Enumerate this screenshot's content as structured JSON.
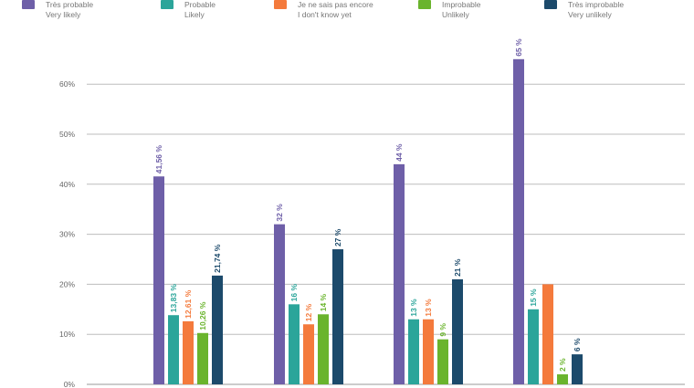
{
  "legend": [
    {
      "fr": "Très probable",
      "en": "Very likely",
      "color": "#6e5fa8"
    },
    {
      "fr": "Probable",
      "en": "Likely",
      "color": "#2ba59a"
    },
    {
      "fr": "Je ne sais pas encore",
      "en": "I don't know yet",
      "color": "#f47a3c"
    },
    {
      "fr": "Improbable",
      "en": "Unlikely",
      "color": "#6ab42d"
    },
    {
      "fr": "Très improbable",
      "en": "Very unlikely",
      "color": "#1c4a6b"
    }
  ],
  "chart_data": {
    "type": "bar",
    "title": "",
    "xlabel": "",
    "ylabel": "",
    "ylim": [
      0,
      70
    ],
    "yticks": [
      0,
      10,
      20,
      30,
      40,
      50,
      60
    ],
    "ytick_labels": [
      "0%",
      "10%",
      "20%",
      "30%",
      "40%",
      "50%",
      "60%"
    ],
    "grid": true,
    "legend_position": "top",
    "categories": [
      "",
      "",
      "",
      ""
    ],
    "series": [
      {
        "name": "Très probable / Very likely",
        "color": "#6e5fa8",
        "values": [
          41.56,
          32,
          44,
          65
        ],
        "labels": [
          "41,56 %",
          "32 %",
          "44 %",
          "65 %"
        ]
      },
      {
        "name": "Probable / Likely",
        "color": "#2ba59a",
        "values": [
          13.83,
          16,
          13,
          15
        ],
        "labels": [
          "13,83 %",
          "16 %",
          "13 %",
          "15 %"
        ]
      },
      {
        "name": "Je ne sais pas encore / I don't know yet",
        "color": "#f47a3c",
        "values": [
          12.61,
          12,
          13,
          20
        ],
        "labels": [
          "12,61 %",
          "12 %",
          "13 %",
          ""
        ]
      },
      {
        "name": "Improbable / Unlikely",
        "color": "#6ab42d",
        "values": [
          10.26,
          14,
          9,
          2
        ],
        "labels": [
          "10,26 %",
          "14 %",
          "9 %",
          "2 %"
        ]
      },
      {
        "name": "Très improbable / Very unlikely",
        "color": "#1c4a6b",
        "values": [
          21.74,
          27,
          21,
          6
        ],
        "labels": [
          "21,74 %",
          "27 %",
          "21 %",
          "6 %"
        ]
      }
    ]
  }
}
